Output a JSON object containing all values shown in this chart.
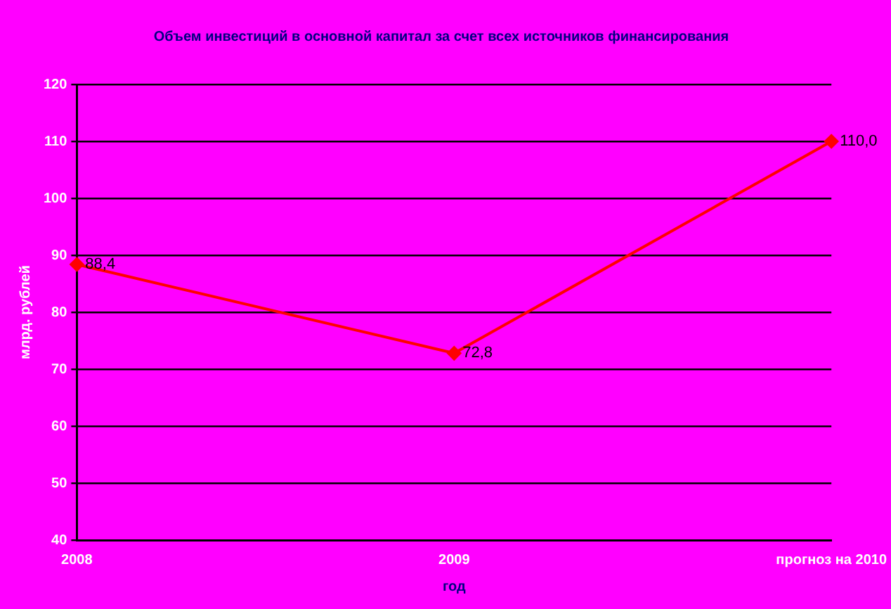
{
  "chart_data": {
    "type": "line",
    "title": "Объем инвестиций в основной капитал за счет всех источников финансирования",
    "xlabel": "год",
    "ylabel": "млрд. рублей",
    "categories": [
      "2008",
      "2009",
      "прогноз на 2010"
    ],
    "series": [
      {
        "color": "#ff0000",
        "values": [
          88.4,
          72.8,
          110.0
        ],
        "value_labels": [
          "88,4",
          "72,8",
          "110,0"
        ]
      }
    ],
    "ylim": [
      40,
      120
    ],
    "yticks": [
      40,
      50,
      60,
      70,
      80,
      90,
      100,
      110,
      120
    ],
    "grid": "y",
    "legend": false,
    "marker": "diamond",
    "line_style": "solid"
  }
}
